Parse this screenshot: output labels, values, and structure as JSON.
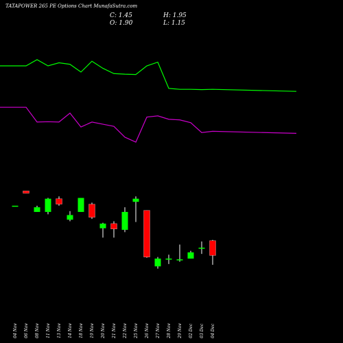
{
  "header": {
    "title": "TATAPOWER 265 PE Options Chart MunafaSutra.com",
    "close": "C: 1.45",
    "open": "O: 1.90",
    "high": "H: 1.95",
    "low": "L: 1.15"
  },
  "colors": {
    "background": "#000000",
    "up": "#00ff00",
    "down": "#ff0000",
    "line_upper": "#00ff00",
    "line_lower": "#cc00cc",
    "wick": "#ffffff",
    "text": "#ffffff"
  },
  "chart_data": {
    "type": "candlestick",
    "title": "TATAPOWER 265 PE Options Chart MunafaSutra.com",
    "categories": [
      "04 Nov",
      "06 Nov",
      "08 Nov",
      "11 Nov",
      "13 Nov",
      "14 Nov",
      "18 Nov",
      "19 Nov",
      "20 Nov",
      "21 Nov",
      "22 Nov",
      "25 Nov",
      "26 Nov",
      "27 Nov",
      "28 Nov",
      "29 Nov",
      "02 Dec",
      "03 Dec",
      "04 Dec"
    ],
    "ylim": [
      1.0,
      8.5
    ],
    "ohlc": [
      {
        "o": 6.3,
        "h": 6.3,
        "l": 6.3,
        "c": 6.3
      },
      {
        "o": 7.25,
        "h": 7.25,
        "l": 7.1,
        "c": 7.1
      },
      {
        "o": 5.9,
        "h": 6.3,
        "l": 5.9,
        "c": 6.2
      },
      {
        "o": 5.9,
        "h": 6.8,
        "l": 5.75,
        "c": 6.75
      },
      {
        "o": 6.75,
        "h": 6.9,
        "l": 6.3,
        "c": 6.4
      },
      {
        "o": 5.4,
        "h": 5.95,
        "l": 5.3,
        "c": 5.7
      },
      {
        "o": 5.9,
        "h": 6.8,
        "l": 5.9,
        "c": 6.8
      },
      {
        "o": 6.4,
        "h": 6.5,
        "l": 5.45,
        "c": 5.55
      },
      {
        "o": 4.85,
        "h": 5.2,
        "l": 4.25,
        "c": 5.15
      },
      {
        "o": 5.15,
        "h": 5.3,
        "l": 4.25,
        "c": 4.8
      },
      {
        "o": 4.75,
        "h": 6.2,
        "l": 4.6,
        "c": 5.9
      },
      {
        "o": 6.55,
        "h": 6.9,
        "l": 5.25,
        "c": 6.75
      },
      {
        "o": 6.0,
        "h": 6.0,
        "l": 2.95,
        "c": 3.0
      },
      {
        "o": 2.4,
        "h": 3.0,
        "l": 2.25,
        "c": 2.9
      },
      {
        "o": 2.9,
        "h": 3.15,
        "l": 2.55,
        "c": 2.9
      },
      {
        "o": 2.8,
        "h": 3.8,
        "l": 2.7,
        "c": 2.85
      },
      {
        "o": 2.9,
        "h": 3.4,
        "l": 2.9,
        "c": 3.3
      },
      {
        "o": 3.6,
        "h": 4.0,
        "l": 3.2,
        "c": 3.6
      },
      {
        "o": 4.05,
        "h": 4.1,
        "l": 2.5,
        "c": 3.1
      }
    ],
    "line_upper": [
      4.8,
      4.8,
      5.0,
      4.8,
      4.9,
      4.85,
      4.6,
      4.95,
      4.72,
      4.55,
      4.53,
      4.52,
      4.8,
      4.92,
      4.07,
      4.04,
      4.04,
      4.03,
      4.04
    ],
    "line_lower": [
      3.46,
      3.46,
      2.98,
      2.99,
      2.98,
      3.27,
      2.82,
      2.98,
      2.91,
      2.84,
      2.49,
      2.33,
      3.14,
      3.18,
      3.07,
      3.05,
      2.96,
      2.64,
      2.68
    ],
    "lines_ylim": [
      1.6,
      5.6
    ]
  }
}
